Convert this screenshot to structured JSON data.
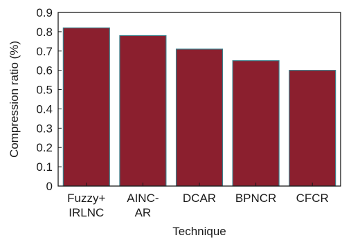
{
  "chart_data": {
    "type": "bar",
    "title": "",
    "xlabel": "Technique",
    "ylabel": "Compression ratio (%)",
    "categories": [
      [
        "Fuzzy+",
        "IRLNC"
      ],
      [
        "AINC-",
        "AR"
      ],
      [
        "DCAR"
      ],
      [
        "BPNCR"
      ],
      [
        "CFCR"
      ]
    ],
    "values": [
      0.82,
      0.78,
      0.71,
      0.65,
      0.6
    ],
    "ylim": [
      0,
      0.9
    ],
    "yticks": [
      "0",
      "0.1",
      "0.2",
      "0.3",
      "0.4",
      "0.5",
      "0.6",
      "0.7",
      "0.8",
      "0.9"
    ],
    "grid": false,
    "legend": "none",
    "colors": {
      "bar_fill": "#8B1F2E",
      "bar_edge": "#3A7F8A",
      "axis": "#1a1a1a"
    }
  }
}
